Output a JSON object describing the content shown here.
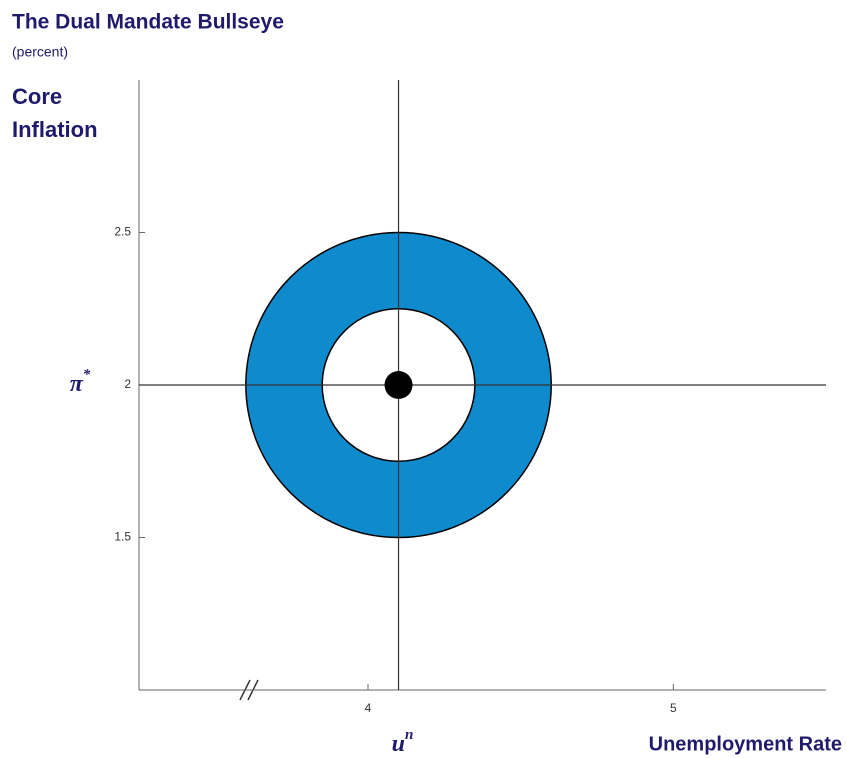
{
  "chart_data": {
    "type": "bullseye",
    "title": "The Dual Mandate Bullseye",
    "subtitle": "(percent)",
    "y_label": "Core Inflation",
    "x_label": "Unemployment Rate",
    "center": {
      "x": 4.1,
      "y": 2
    },
    "outer_radius": 0.5,
    "inner_radius": 0.25,
    "ring_color": "#0f8bcd",
    "x_annotation": {
      "text": "u",
      "superscript": "n"
    },
    "y_annotation": {
      "text": "π",
      "superscript": "*"
    },
    "xlim": [
      3.25,
      5.5
    ],
    "ylim": [
      1,
      3
    ],
    "xticks": [
      4,
      5
    ],
    "yticks": [
      1.5,
      2,
      2.5
    ]
  }
}
